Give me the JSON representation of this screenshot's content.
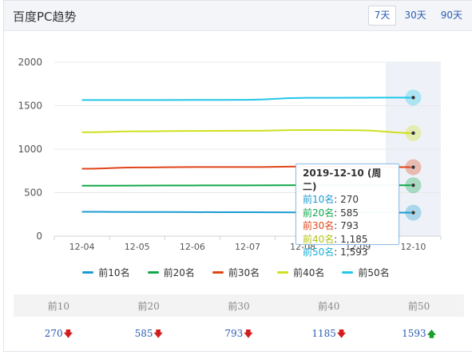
{
  "header": {
    "title": "百度PC趋势",
    "tabs": [
      {
        "label": "7天",
        "active": true
      },
      {
        "label": "30天",
        "active": false
      },
      {
        "label": "90天",
        "active": false
      }
    ]
  },
  "chart_data": {
    "type": "line",
    "categories": [
      "12-04",
      "12-05",
      "12-06",
      "12-07",
      "12-08",
      "12-09",
      "12-10"
    ],
    "ylim": [
      0,
      2000
    ],
    "yticks": [
      "0",
      "500",
      "1000",
      "1500",
      "2000"
    ],
    "grid": true,
    "legend_position": "bottom",
    "highlight_category": "12-10",
    "series": [
      {
        "name": "前10名",
        "color": "#1b9bd1",
        "values": [
          280,
          278,
          276,
          275,
          273,
          272,
          270
        ]
      },
      {
        "name": "前20名",
        "color": "#12a84a",
        "values": [
          580,
          581,
          583,
          584,
          586,
          586,
          585
        ]
      },
      {
        "name": "前30名",
        "color": "#e0451a",
        "values": [
          775,
          790,
          795,
          795,
          800,
          797,
          793
        ]
      },
      {
        "name": "前40名",
        "color": "#cfe01c",
        "values": [
          1195,
          1205,
          1210,
          1212,
          1220,
          1218,
          1185
        ]
      },
      {
        "name": "前50名",
        "color": "#22c6ea",
        "values": [
          1565,
          1565,
          1566,
          1568,
          1590,
          1592,
          1593
        ]
      }
    ]
  },
  "tooltip": {
    "title": "2019-12-10 (周二)",
    "rows": [
      {
        "label": "前10名",
        "value": "270",
        "color": "#1b9bd1"
      },
      {
        "label": "前20名",
        "value": "585",
        "color": "#12a84a"
      },
      {
        "label": "前30名",
        "value": "793",
        "color": "#e0451a"
      },
      {
        "label": "前40名",
        "value": "1,185",
        "color": "#b5c316"
      },
      {
        "label": "前50名",
        "value": "1,593",
        "color": "#1aaed4"
      }
    ]
  },
  "stats": {
    "headers": [
      "前10",
      "前20",
      "前30",
      "前40",
      "前50"
    ],
    "values": [
      {
        "value": "270",
        "trend": "down"
      },
      {
        "value": "585",
        "trend": "down"
      },
      {
        "value": "793",
        "trend": "down"
      },
      {
        "value": "1185",
        "trend": "down"
      },
      {
        "value": "1593",
        "trend": "up"
      }
    ]
  }
}
